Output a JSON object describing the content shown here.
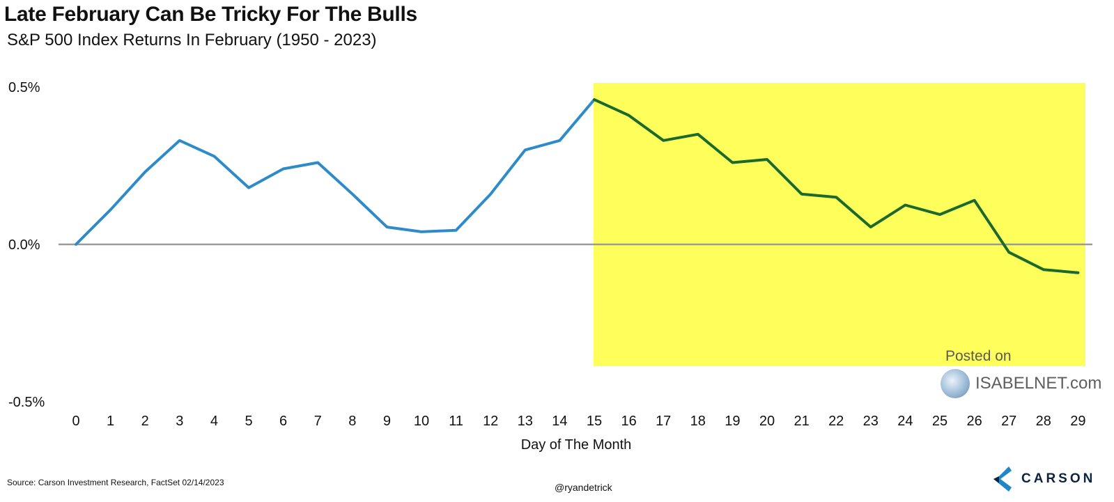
{
  "header": {
    "title": "Late February Can Be Tricky For The Bulls",
    "subtitle": "S&P 500 Index Returns In February (1950 - 2023)"
  },
  "footer": {
    "source": "Source: Carson Investment Research, FactSet 02/14/2023",
    "handle": "@ryandetrick",
    "logo_text": "CARSON"
  },
  "watermark": {
    "posted_on": "Posted on",
    "site": "ISABELNET.com"
  },
  "chart_data": {
    "type": "line",
    "title": "Late February Can Be Tricky For The Bulls",
    "subtitle": "S&P 500 Index Returns In February (1950 - 2023)",
    "xlabel": "Day of The Month",
    "ylabel": "",
    "ylim": [
      -0.5,
      0.5
    ],
    "xlim": [
      0,
      29
    ],
    "yticks": [
      "0.5%",
      "0.0%",
      "-0.5%"
    ],
    "ytick_values": [
      0.5,
      0.0,
      -0.5
    ],
    "x": [
      0,
      1,
      2,
      3,
      4,
      5,
      6,
      7,
      8,
      9,
      10,
      11,
      12,
      13,
      14,
      15,
      16,
      17,
      18,
      19,
      20,
      21,
      22,
      23,
      24,
      25,
      26,
      27,
      28,
      29
    ],
    "values": [
      0.0,
      0.11,
      0.23,
      0.33,
      0.28,
      0.18,
      0.24,
      0.26,
      0.16,
      0.055,
      0.04,
      0.045,
      0.16,
      0.3,
      0.33,
      0.46,
      0.41,
      0.33,
      0.35,
      0.26,
      0.27,
      0.16,
      0.15,
      0.055,
      0.125,
      0.095,
      0.14,
      -0.025,
      -0.08,
      -0.09
    ],
    "highlight": {
      "from_day": 15,
      "to_day": 29,
      "color": "#ffff5c"
    },
    "line_colors": {
      "before_highlight": "#2e8bc9",
      "within_highlight": "#1b6a2c"
    },
    "zero_line_color": "#9a9a9a",
    "grid": false,
    "legend": "none"
  }
}
